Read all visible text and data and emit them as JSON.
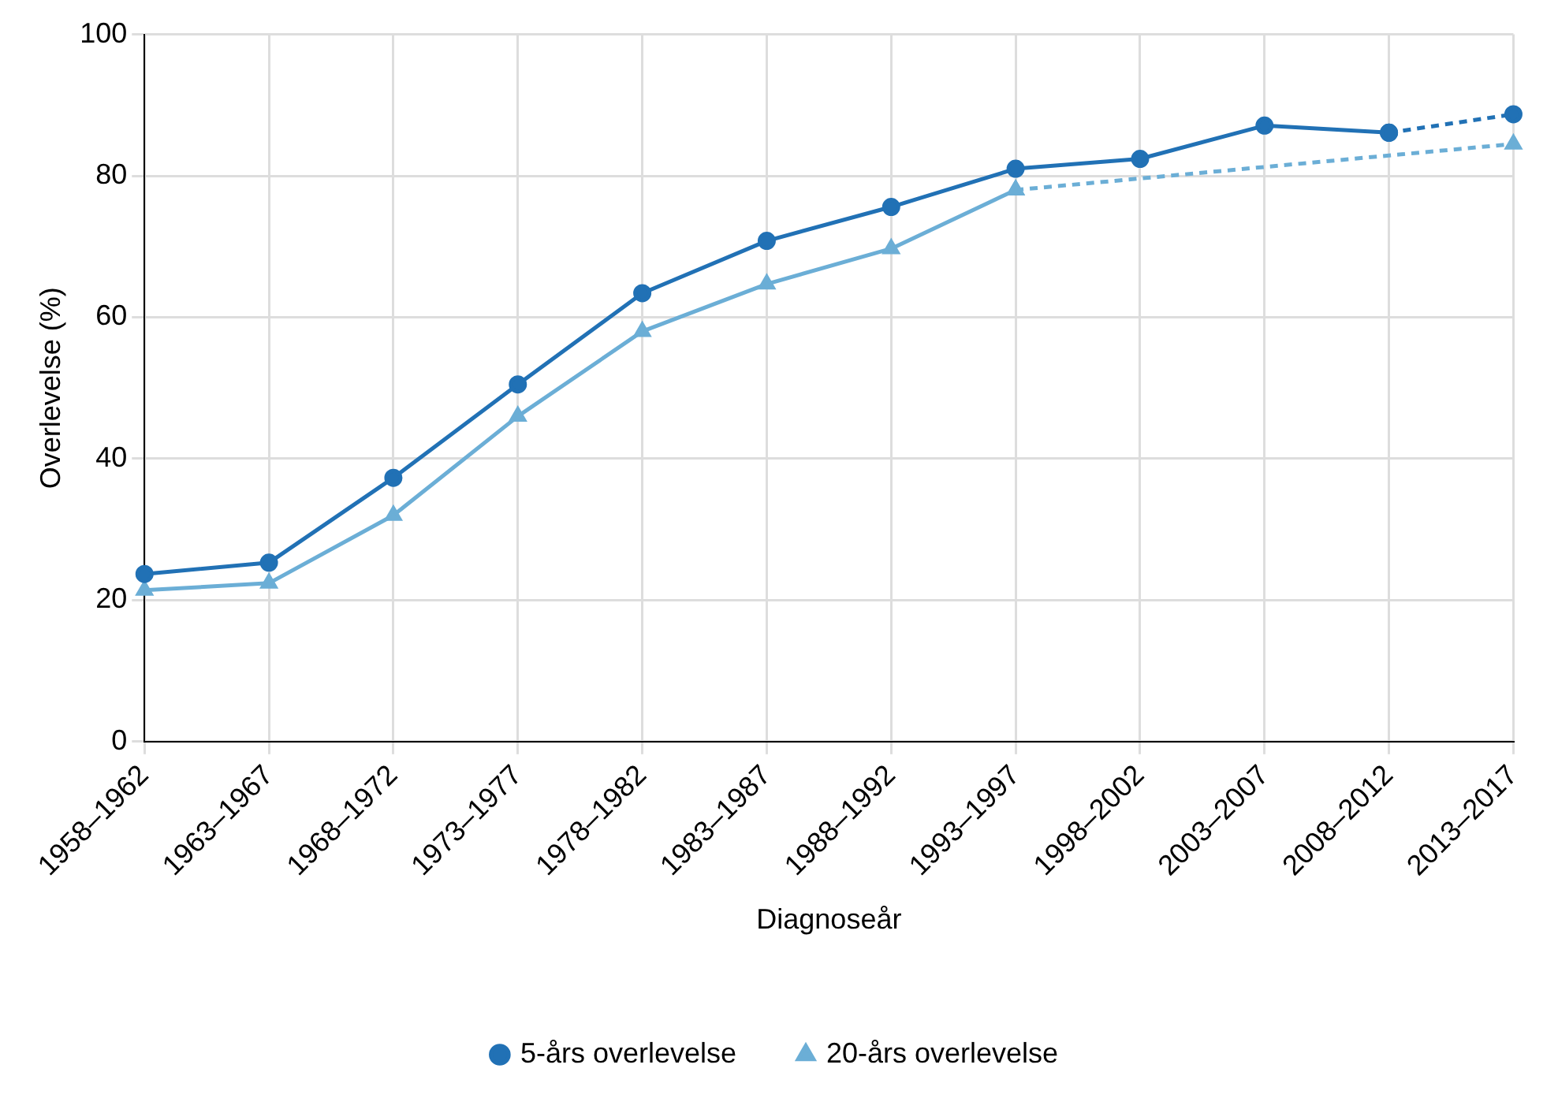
{
  "chart_data": {
    "type": "line",
    "xlabel": "Diagnoseår",
    "ylabel": "Overlevelse (%)",
    "categories": [
      "1958–1962",
      "1963–1967",
      "1968–1972",
      "1973–1977",
      "1978–1982",
      "1983–1987",
      "1988–1992",
      "1993–1997",
      "1998–2002",
      "2003–2007",
      "2008–2012",
      "2013–2017"
    ],
    "ylim": [
      0,
      100
    ],
    "yticks": [
      0,
      20,
      40,
      60,
      80,
      100
    ],
    "grid": true,
    "legend": "bottom",
    "series": [
      {
        "name": "5-års overlevelse",
        "color": "#2171b5",
        "marker": "circle",
        "line_style": "solid",
        "values": [
          23.7,
          25.3,
          37.3,
          50.5,
          63.4,
          70.8,
          75.6,
          81.0,
          82.4,
          87.1,
          86.1,
          null
        ]
      },
      {
        "name": "20-års overlevelse",
        "color": "#6baed6",
        "marker": "triangle",
        "line_style": "solid",
        "values": [
          21.4,
          22.4,
          32.0,
          46.0,
          58.0,
          64.7,
          69.7,
          78.0,
          null,
          null,
          null,
          null
        ]
      },
      {
        "color": "#2171b5",
        "marker": "circle",
        "line_style": "dashed",
        "values": [
          null,
          null,
          null,
          null,
          null,
          null,
          null,
          null,
          null,
          null,
          86.1,
          88.7
        ]
      },
      {
        "color": "#6baed6",
        "marker": "triangle",
        "line_style": "dashed",
        "values": [
          null,
          null,
          null,
          null,
          null,
          null,
          null,
          78.0,
          null,
          null,
          null,
          84.5
        ]
      }
    ]
  }
}
